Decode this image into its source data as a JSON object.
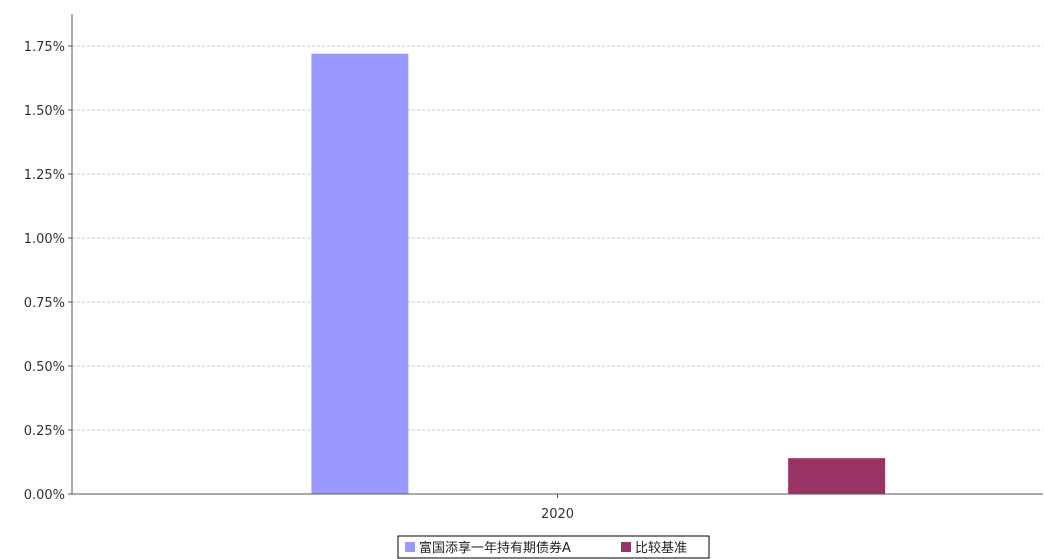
{
  "chart_data": {
    "type": "bar",
    "categories": [
      "2020"
    ],
    "series": [
      {
        "name": "富国添享一年持有期债券A",
        "values": [
          1.72
        ],
        "color": "#9999ff"
      },
      {
        "name": "比较基准",
        "values": [
          0.14
        ],
        "color": "#993366"
      }
    ],
    "title": "",
    "xlabel": "",
    "ylabel": "",
    "ylim": [
      0,
      1.875
    ],
    "yticks": [
      0,
      0.25,
      0.5,
      0.75,
      1.0,
      1.25,
      1.5,
      1.75
    ],
    "ytick_labels": [
      "0.00%",
      "0.25%",
      "0.50%",
      "0.75%",
      "1.00%",
      "1.25%",
      "1.50%",
      "1.75%"
    ],
    "grid": true,
    "legend_position": "bottom-center"
  }
}
